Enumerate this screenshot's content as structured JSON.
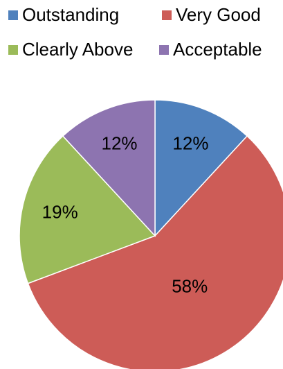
{
  "chart_data": {
    "type": "pie",
    "categories": [
      "Outstanding",
      "Very Good",
      "Clearly Above",
      "Acceptable"
    ],
    "values": [
      12,
      58,
      19,
      12
    ],
    "value_labels": [
      "12%",
      "58%",
      "19%",
      "12%"
    ],
    "colors": [
      "#4f81bd",
      "#cd5c57",
      "#9bbb59",
      "#8d74b0"
    ],
    "legend": "top"
  }
}
